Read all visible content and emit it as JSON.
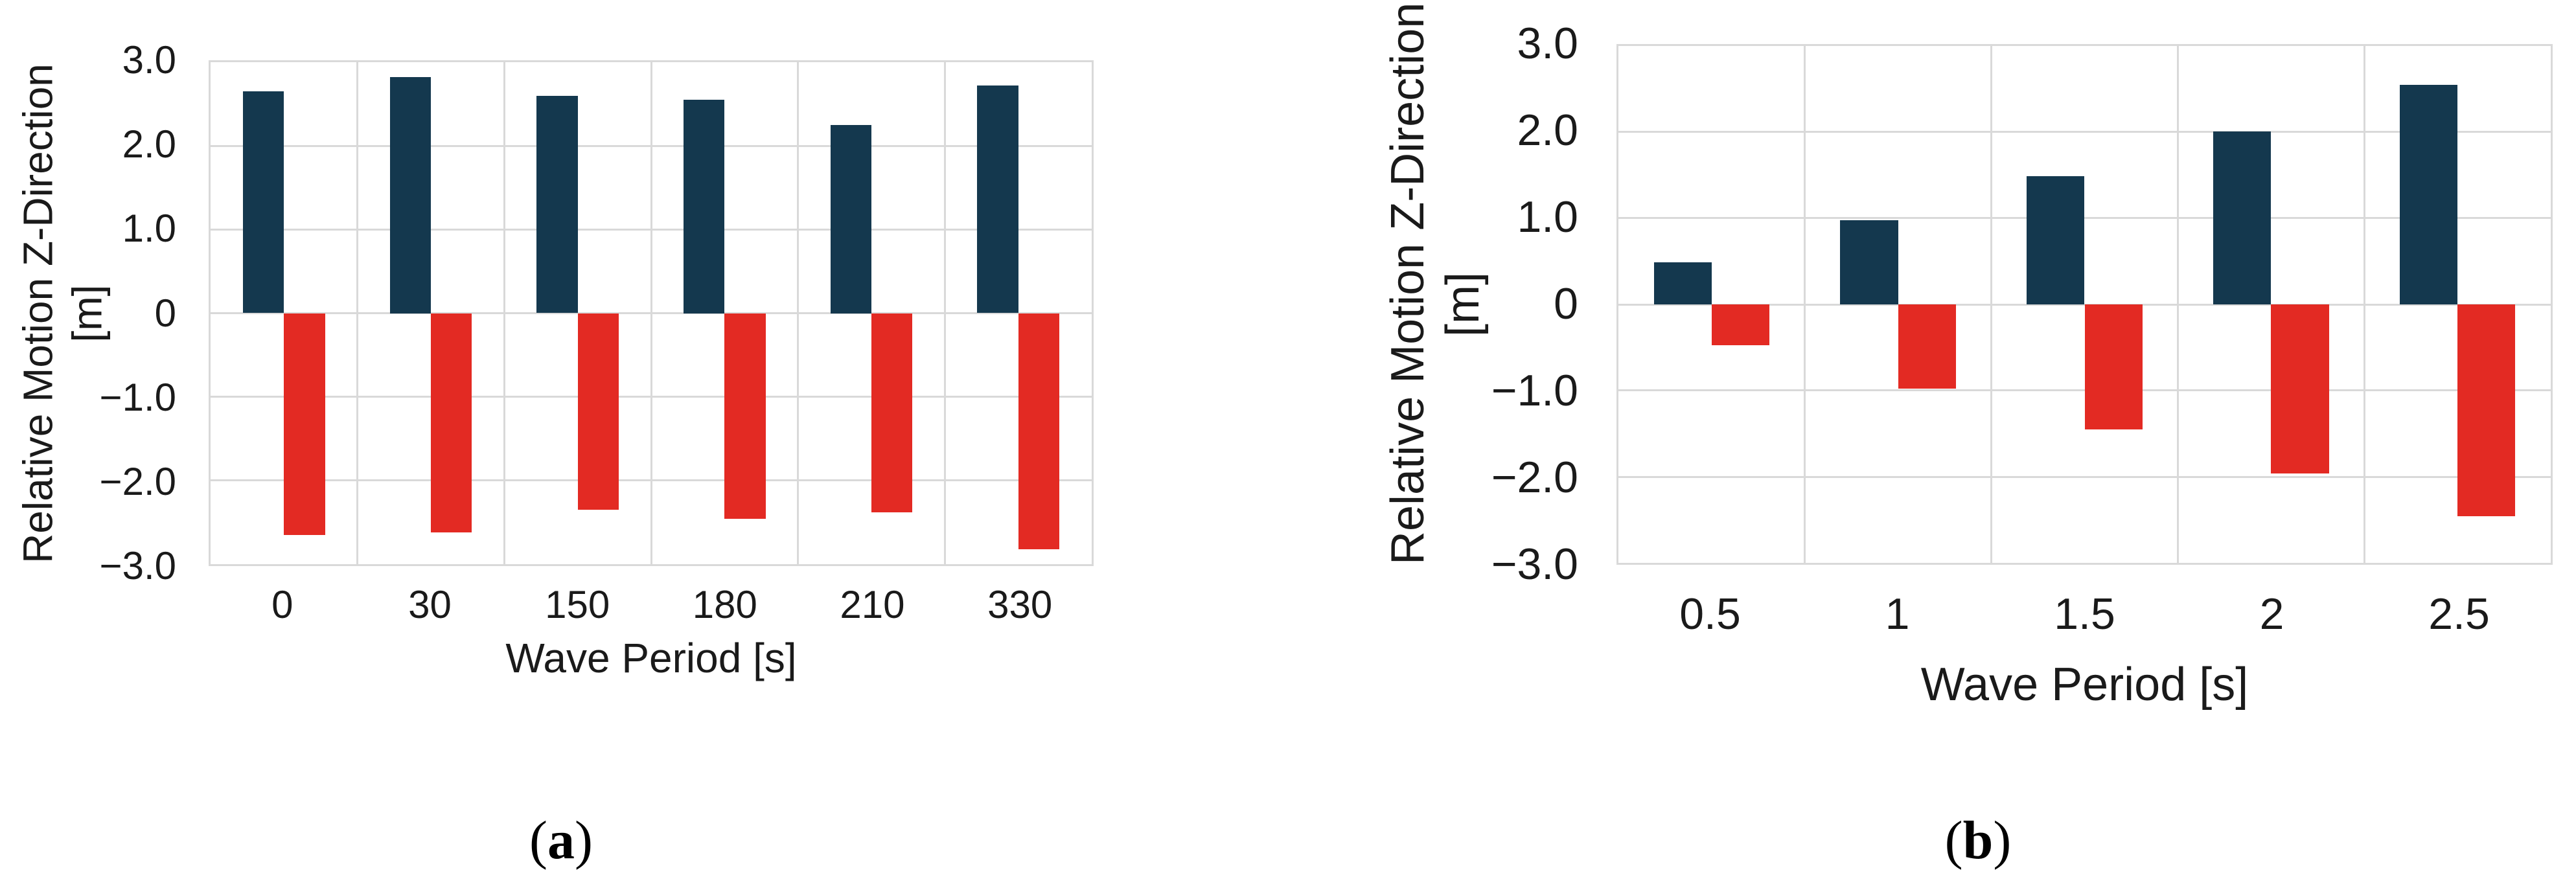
{
  "figure": {
    "background": "#ffffff",
    "text_color": "#1a1a1a",
    "gridline_color": "#d9d9d9",
    "bar_color_positive": "#14384e",
    "bar_color_negative": "#e32a23"
  },
  "chart_data": [
    {
      "type": "bar",
      "panel": "a",
      "caption_open": "(",
      "caption_letter": "a",
      "caption_close": ")",
      "title": "",
      "xlabel": "Wave Period [s]",
      "ylabel_line1": "Relative Motion Z-Direction",
      "ylabel_line2": "[m]",
      "categories": [
        "0",
        "30",
        "150",
        "180",
        "210",
        "330"
      ],
      "series": [
        {
          "role": "positive-max",
          "color": "#14384e",
          "values": [
            2.65,
            2.82,
            2.6,
            2.55,
            2.25,
            2.72
          ]
        },
        {
          "role": "negative-min",
          "color": "#e32a23",
          "values": [
            -2.65,
            -2.62,
            -2.35,
            -2.46,
            -2.38,
            -2.82
          ]
        }
      ],
      "ylim": [
        -3,
        3
      ],
      "yticks": [
        {
          "label": "3.0",
          "value": 3
        },
        {
          "label": "2.0",
          "value": 2
        },
        {
          "label": "1.0",
          "value": 1
        },
        {
          "label": "0",
          "value": 0
        },
        {
          "label": "−1.0",
          "value": -1
        },
        {
          "label": "−2.0",
          "value": -2
        },
        {
          "label": "−3.0",
          "value": -3
        }
      ],
      "grid": true,
      "legend": "none"
    },
    {
      "type": "bar",
      "panel": "b",
      "caption_open": "(",
      "caption_letter": "b",
      "caption_close": ")",
      "title": "",
      "xlabel": "Wave Period [s]",
      "ylabel_line1": "Relative Motion Z-Direction",
      "ylabel_line2": "[m]",
      "categories": [
        "0.5",
        "1",
        "1.5",
        "2",
        "2.5"
      ],
      "series": [
        {
          "role": "positive-max",
          "color": "#14384e",
          "values": [
            0.49,
            0.98,
            1.49,
            2.01,
            2.55
          ]
        },
        {
          "role": "negative-min",
          "color": "#e32a23",
          "values": [
            -0.47,
            -0.98,
            -1.45,
            -1.96,
            -2.46
          ]
        }
      ],
      "ylim": [
        -3,
        3
      ],
      "yticks": [
        {
          "label": "3.0",
          "value": 3
        },
        {
          "label": "2.0",
          "value": 2
        },
        {
          "label": "1.0",
          "value": 1
        },
        {
          "label": "0",
          "value": 0
        },
        {
          "label": "−1.0",
          "value": -1
        },
        {
          "label": "−2.0",
          "value": -2
        },
        {
          "label": "−3.0",
          "value": -3
        }
      ],
      "grid": true,
      "legend": "none"
    }
  ]
}
